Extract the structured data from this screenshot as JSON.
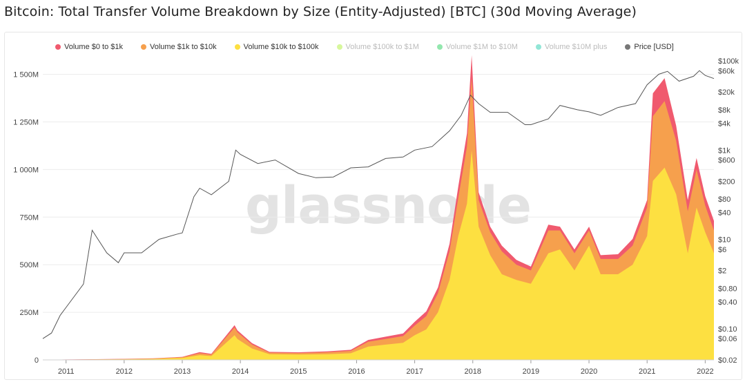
{
  "page": {
    "title": "Bitcoin: Total Transfer Volume Breakdown by Size (Entity-Adjusted) [BTC] (30d Moving Average)"
  },
  "watermark": "glassnode",
  "legend": [
    {
      "label": "Volume $0 to $1k",
      "color": "#f05a6e",
      "active": true
    },
    {
      "label": "Volume $1k to $10k",
      "color": "#f6a04d",
      "active": true
    },
    {
      "label": "Volume $10k to $100k",
      "color": "#fde041",
      "active": true
    },
    {
      "label": "Volume $100k to $1M",
      "color": "#b6f04a",
      "active": false
    },
    {
      "label": "Volume $1M to $10M",
      "color": "#3ad36b",
      "active": false
    },
    {
      "label": "Volume $10M plus",
      "color": "#38d1b5",
      "active": false
    },
    {
      "label": "Price [USD]",
      "color": "#777777",
      "active": true
    }
  ],
  "chart_data": {
    "type": "area",
    "title": "Bitcoin: Total Transfer Volume Breakdown by Size (Entity-Adjusted) [BTC] (30d Moving Average)",
    "x_range": [
      2010.6,
      2022.15
    ],
    "x_ticks": [
      "2011",
      "2012",
      "2013",
      "2014",
      "2015",
      "2016",
      "2017",
      "2018",
      "2019",
      "2020",
      "2021",
      "2022"
    ],
    "y_left": {
      "ticks": [
        0,
        250,
        500,
        750,
        1000,
        1250,
        1500
      ],
      "tick_labels": [
        "0",
        "250M",
        "500M",
        "750M",
        "1 000M",
        "1 250M",
        "1 500M"
      ],
      "range": [
        0,
        1600
      ],
      "unit": "M BTC"
    },
    "y_right": {
      "scale": "log",
      "range": [
        0.02,
        100000
      ],
      "tick_labels": [
        "$100k",
        "$60k",
        "$20k",
        "$8k",
        "$4k",
        "$1k",
        "$600",
        "$200",
        "$80",
        "$40",
        "$10",
        "$6",
        "$2",
        "$0.80",
        "$0.40",
        "$0.10",
        "$0.06",
        "$0.02"
      ],
      "tick_values": [
        100000,
        60000,
        20000,
        8000,
        4000,
        1000,
        600,
        200,
        80,
        40,
        10,
        6,
        2,
        0.8,
        0.4,
        0.1,
        0.06,
        0.02
      ]
    },
    "x": [
      2010.6,
      2011.0,
      2011.5,
      2012.0,
      2012.5,
      2013.0,
      2013.3,
      2013.5,
      2013.9,
      2013.95,
      2014.2,
      2014.5,
      2015.0,
      2015.5,
      2015.9,
      2016.2,
      2016.5,
      2016.8,
      2017.0,
      2017.2,
      2017.4,
      2017.6,
      2017.75,
      2017.9,
      2017.98,
      2018.1,
      2018.3,
      2018.5,
      2018.75,
      2019.0,
      2019.3,
      2019.5,
      2019.75,
      2020.0,
      2020.2,
      2020.5,
      2020.75,
      2021.0,
      2021.1,
      2021.3,
      2021.5,
      2021.7,
      2021.85,
      2022.0,
      2022.15
    ],
    "series": [
      {
        "name": "Volume $10k to $100k",
        "values": [
          0,
          1,
          2,
          3,
          5,
          10,
          25,
          20,
          130,
          110,
          60,
          30,
          28,
          30,
          35,
          70,
          80,
          90,
          130,
          160,
          250,
          420,
          650,
          820,
          1100,
          700,
          550,
          450,
          420,
          400,
          560,
          580,
          470,
          600,
          450,
          450,
          500,
          650,
          940,
          1010,
          870,
          560,
          800,
          670,
          560
        ]
      },
      {
        "name": "Volume $1k to $10k",
        "values": [
          0,
          0.5,
          1,
          1.5,
          2,
          4,
          10,
          8,
          40,
          35,
          20,
          8,
          8,
          10,
          12,
          25,
          30,
          35,
          50,
          70,
          100,
          150,
          200,
          300,
          380,
          140,
          120,
          120,
          80,
          70,
          120,
          100,
          90,
          80,
          80,
          80,
          100,
          150,
          340,
          350,
          280,
          220,
          200,
          140,
          120
        ]
      },
      {
        "name": "Volume $0 to $1k",
        "values": [
          0,
          0.5,
          0.5,
          1,
          1,
          2,
          6,
          4,
          12,
          10,
          8,
          4,
          4,
          5,
          6,
          10,
          12,
          14,
          20,
          25,
          30,
          40,
          60,
          70,
          120,
          40,
          30,
          30,
          25,
          20,
          30,
          20,
          20,
          20,
          20,
          25,
          35,
          40,
          120,
          120,
          80,
          60,
          60,
          50,
          50
        ]
      }
    ],
    "price_series": {
      "name": "Price [USD]",
      "x": [
        2010.6,
        2010.75,
        2010.9,
        2011.0,
        2011.3,
        2011.45,
        2011.7,
        2011.9,
        2012.0,
        2012.3,
        2012.6,
        2012.9,
        2013.0,
        2013.2,
        2013.3,
        2013.5,
        2013.8,
        2013.92,
        2014.0,
        2014.3,
        2014.6,
        2015.0,
        2015.3,
        2015.6,
        2015.9,
        2016.2,
        2016.5,
        2016.8,
        2017.0,
        2017.3,
        2017.6,
        2017.8,
        2017.96,
        2018.1,
        2018.3,
        2018.6,
        2018.9,
        2019.0,
        2019.3,
        2019.5,
        2019.8,
        2020.0,
        2020.2,
        2020.5,
        2020.8,
        2021.0,
        2021.2,
        2021.35,
        2021.55,
        2021.8,
        2021.9,
        2022.0,
        2022.15
      ],
      "values": [
        0.06,
        0.08,
        0.2,
        0.3,
        1.0,
        16,
        5,
        3,
        5,
        5,
        10,
        13,
        14,
        90,
        140,
        100,
        200,
        1000,
        800,
        500,
        600,
        300,
        240,
        250,
        400,
        420,
        650,
        700,
        1000,
        1200,
        2700,
        6000,
        17000,
        11000,
        7000,
        7000,
        3700,
        3700,
        5000,
        10000,
        8000,
        7200,
        6000,
        9000,
        11000,
        29000,
        50000,
        58000,
        35000,
        45000,
        60000,
        47000,
        40000
      ]
    }
  }
}
